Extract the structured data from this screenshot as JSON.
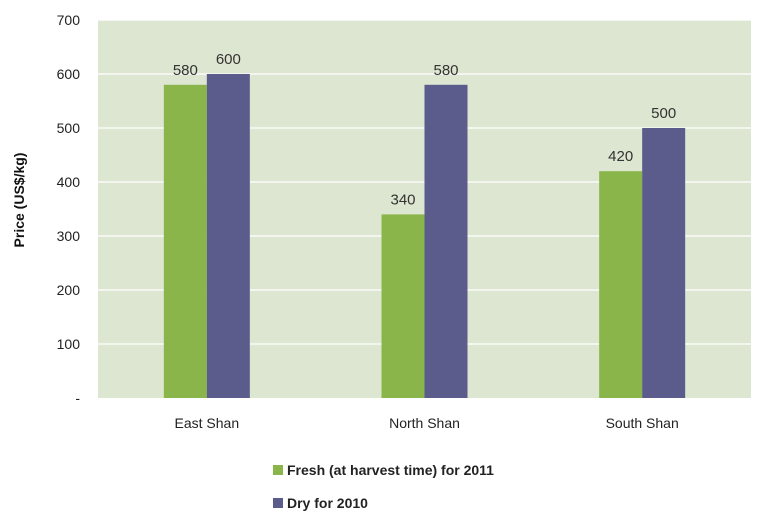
{
  "chart_data": {
    "type": "bar",
    "title": "",
    "xlabel": "",
    "ylabel": "Price (US$/kg)",
    "ylim": [
      0,
      700
    ],
    "yticks": [
      0,
      100,
      200,
      300,
      400,
      500,
      600,
      700
    ],
    "ytick_labels": [
      "-",
      "100",
      "200",
      "300",
      "400",
      "500",
      "600",
      "700"
    ],
    "categories": [
      "East Shan",
      "North Shan",
      "South Shan"
    ],
    "series": [
      {
        "name": "Fresh (at harvest time) for 2011",
        "color": "#8ab54a",
        "values": [
          580,
          340,
          420
        ]
      },
      {
        "name": "Dry for 2010",
        "color": "#5b5b8c",
        "values": [
          600,
          580,
          500
        ]
      }
    ],
    "grid": true,
    "plot_background": "#dde6d1",
    "legend_position": "bottom"
  }
}
